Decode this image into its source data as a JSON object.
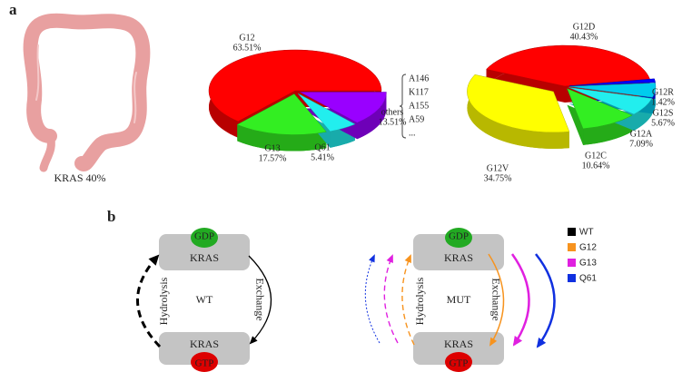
{
  "panel_labels": [
    "a",
    "b"
  ],
  "colon_label": "KRAS 40%",
  "chart_data": [
    {
      "type": "pie",
      "categories": [
        "G12",
        "G13",
        "Q61",
        "others"
      ],
      "values": [
        63.51,
        17.57,
        5.41,
        13.51
      ],
      "value_labels": [
        "63.51%",
        "17.57%",
        "5.41%",
        "13.51%"
      ],
      "colors": [
        "#ff0000",
        "#33ee22",
        "#22eeee",
        "#9900ff"
      ]
    },
    {
      "type": "pie",
      "categories": [
        "G12D",
        "G12V",
        "G12C",
        "G12A",
        "G12S",
        "G12R"
      ],
      "values": [
        40.43,
        34.75,
        10.64,
        7.09,
        5.67,
        1.42
      ],
      "value_labels": [
        "40.43%",
        "34.75%",
        "10.64%",
        "7.09%",
        "5.67%",
        "1.42%"
      ],
      "colors": [
        "#ff0000",
        "#ffff00",
        "#33ee22",
        "#22eeee",
        "#00ccee",
        "#0000ff"
      ]
    }
  ],
  "others_breakdown": [
    "A146",
    "K117",
    "A155",
    "A59",
    "..."
  ],
  "diagram": {
    "wt": {
      "gdp": "GDP",
      "kras_top": "KRAS",
      "kras_bottom": "KRAS",
      "gtp": "GTP",
      "hydrolysis": "Hydrolysis",
      "exchange": "Exchange",
      "state": "WT"
    },
    "mut": {
      "gdp": "GDP",
      "kras_top": "KRAS",
      "kras_bottom": "KRAS",
      "gtp": "GTP",
      "hydrolysis": "Hydrolysis",
      "exchange": "Exchange",
      "state": "MUT"
    }
  },
  "legend": [
    {
      "name": "WT",
      "color": "#000000"
    },
    {
      "name": "G12",
      "color": "#f7931e"
    },
    {
      "name": "G13",
      "color": "#e020e0"
    },
    {
      "name": "Q61",
      "color": "#1030e0"
    }
  ]
}
